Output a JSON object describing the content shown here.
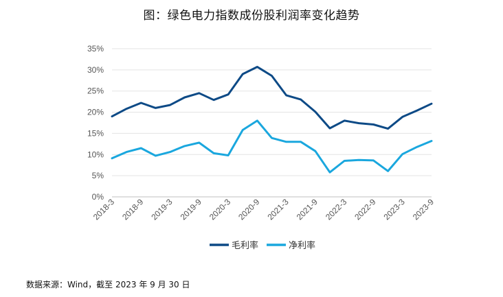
{
  "title": "图：绿色电力指数成份股利润率变化趋势",
  "source": "数据来源：Wind，截至 2023 年 9 月 30 日",
  "chart_data": {
    "type": "line",
    "title": "图：绿色电力指数成份股利润率变化趋势",
    "xlabel": "",
    "ylabel": "",
    "ylim": [
      0,
      35
    ],
    "y_ticks": [
      "0%",
      "5%",
      "10%",
      "15%",
      "20%",
      "25%",
      "30%",
      "35%"
    ],
    "x": [
      "2018-3",
      "2018-6",
      "2018-9",
      "2018-12",
      "2019-3",
      "2019-6",
      "2019-9",
      "2019-12",
      "2020-3",
      "2020-6",
      "2020-9",
      "2020-12",
      "2021-3",
      "2021-6",
      "2021-9",
      "2021-12",
      "2022-3",
      "2022-6",
      "2022-9",
      "2022-12",
      "2023-3",
      "2023-6",
      "2023-9"
    ],
    "x_tick_labels": [
      "2018-3",
      "2018-9",
      "2019-3",
      "2019-9",
      "2020-3",
      "2020-9",
      "2021-3",
      "2021-9",
      "2022-3",
      "2022-9",
      "2023-3",
      "2023-9"
    ],
    "grid": "horizontal",
    "legend_position": "bottom",
    "series": [
      {
        "name": "毛利率",
        "color": "#0d4a86",
        "values": [
          19.0,
          20.8,
          22.2,
          21.0,
          21.7,
          23.5,
          24.5,
          22.9,
          24.2,
          29.0,
          30.7,
          28.6,
          24.0,
          23.0,
          20.1,
          16.2,
          18.0,
          17.4,
          17.1,
          16.1,
          18.9,
          20.4,
          22.0
        ]
      },
      {
        "name": "净利率",
        "color": "#1aa7de",
        "values": [
          9.1,
          10.6,
          11.5,
          9.7,
          10.6,
          12.0,
          12.8,
          10.3,
          9.8,
          15.8,
          18.0,
          13.9,
          13.0,
          13.0,
          10.8,
          5.8,
          8.5,
          8.7,
          8.6,
          6.1,
          10.1,
          11.8,
          13.2
        ]
      }
    ]
  }
}
